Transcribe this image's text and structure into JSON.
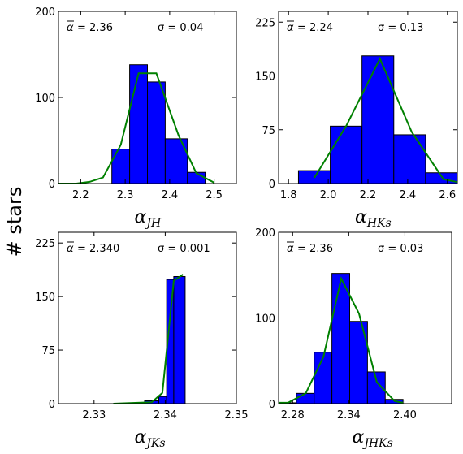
{
  "figure": {
    "ylabel": "# stars",
    "colors": {
      "bar": "#0000ff",
      "fit_line": "#008000",
      "edge": "#000000"
    }
  },
  "chart_data": [
    {
      "id": "jh",
      "type": "bar",
      "xlabel_main": "α",
      "xlabel_sub": "JH",
      "xlim": [
        2.15,
        2.55
      ],
      "ylim": [
        0,
        200
      ],
      "xticks": [
        2.2,
        2.3,
        2.4,
        2.5
      ],
      "xtick_labels": [
        "2.2",
        "2.3",
        "2.4",
        "2.5"
      ],
      "yticks": [
        0,
        100,
        200
      ],
      "ytick_labels": [
        "0",
        "100",
        "200"
      ],
      "mean_label": "= 2.36",
      "sigma_label": "σ =  0.04",
      "bins": [
        [
          2.27,
          2.31,
          40
        ],
        [
          2.31,
          2.35,
          138
        ],
        [
          2.35,
          2.39,
          118
        ],
        [
          2.39,
          2.44,
          52
        ],
        [
          2.44,
          2.48,
          13
        ]
      ],
      "fit_line": [
        [
          2.15,
          0
        ],
        [
          2.19,
          0
        ],
        [
          2.22,
          2
        ],
        [
          2.25,
          7
        ],
        [
          2.29,
          45
        ],
        [
          2.33,
          128
        ],
        [
          2.37,
          128
        ],
        [
          2.42,
          56
        ],
        [
          2.46,
          12
        ],
        [
          2.5,
          1
        ]
      ]
    },
    {
      "id": "hks",
      "type": "bar",
      "xlabel_main": "α",
      "xlabel_sub": "HKs",
      "xlim": [
        1.75,
        2.65
      ],
      "ylim": [
        0,
        240
      ],
      "xticks": [
        1.8,
        2.0,
        2.2,
        2.4,
        2.6
      ],
      "xtick_labels": [
        "1.8",
        "2.0",
        "2.2",
        "2.4",
        "2.6"
      ],
      "yticks": [
        0,
        75,
        150,
        225
      ],
      "ytick_labels": [
        "0",
        "75",
        "150",
        "225"
      ],
      "mean_label": "= 2.24",
      "sigma_label": "σ =  0.13",
      "bins": [
        [
          1.85,
          2.01,
          18
        ],
        [
          2.01,
          2.17,
          80
        ],
        [
          2.17,
          2.33,
          178
        ],
        [
          2.33,
          2.49,
          68
        ],
        [
          2.49,
          2.65,
          15
        ]
      ],
      "fit_line": [
        [
          1.93,
          8
        ],
        [
          2.09,
          80
        ],
        [
          2.26,
          174
        ],
        [
          2.42,
          72
        ],
        [
          2.58,
          6
        ],
        [
          2.65,
          2
        ]
      ]
    },
    {
      "id": "jks",
      "type": "bar",
      "xlabel_main": "α",
      "xlabel_sub": "JKs",
      "xlim": [
        2.325,
        2.35
      ],
      "ylim": [
        0,
        240
      ],
      "xticks": [
        2.33,
        2.34,
        2.35
      ],
      "xtick_labels": [
        "2.33",
        "2.34",
        "2.35"
      ],
      "yticks": [
        0,
        75,
        150,
        225
      ],
      "ytick_labels": [
        "0",
        "75",
        "150",
        "225"
      ],
      "mean_label": "= 2.340",
      "sigma_label": "σ =  0.001",
      "bins": [
        [
          2.3371,
          2.3391,
          4
        ],
        [
          2.3391,
          2.3402,
          10
        ],
        [
          2.3402,
          2.3412,
          174
        ],
        [
          2.3412,
          2.3428,
          178
        ]
      ],
      "fit_line": [
        [
          2.3327,
          0
        ],
        [
          2.3381,
          2
        ],
        [
          2.3396,
          15
        ],
        [
          2.3412,
          172
        ],
        [
          2.3425,
          181
        ]
      ]
    },
    {
      "id": "jhks",
      "type": "bar",
      "xlabel_main": "α",
      "xlabel_sub": "JHKs",
      "xlim": [
        2.265,
        2.45
      ],
      "ylim": [
        0,
        200
      ],
      "xticks": [
        2.28,
        2.34,
        2.4
      ],
      "xtick_labels": [
        "2.28",
        "2.34",
        "2.40"
      ],
      "yticks": [
        0,
        100,
        200
      ],
      "ytick_labels": [
        "0",
        "100",
        "200"
      ],
      "mean_label": "= 2.36",
      "sigma_label": "σ =  0.03",
      "bins": [
        [
          2.265,
          2.284,
          1
        ],
        [
          2.284,
          2.303,
          12
        ],
        [
          2.303,
          2.322,
          60
        ],
        [
          2.322,
          2.341,
          152
        ],
        [
          2.341,
          2.36,
          96
        ],
        [
          2.36,
          2.379,
          37
        ],
        [
          2.379,
          2.398,
          5
        ]
      ],
      "fit_line": [
        [
          2.265,
          1
        ],
        [
          2.275,
          1
        ],
        [
          2.294,
          12
        ],
        [
          2.313,
          55
        ],
        [
          2.332,
          146
        ],
        [
          2.351,
          105
        ],
        [
          2.37,
          25
        ],
        [
          2.389,
          3
        ],
        [
          2.398,
          1
        ]
      ]
    }
  ]
}
